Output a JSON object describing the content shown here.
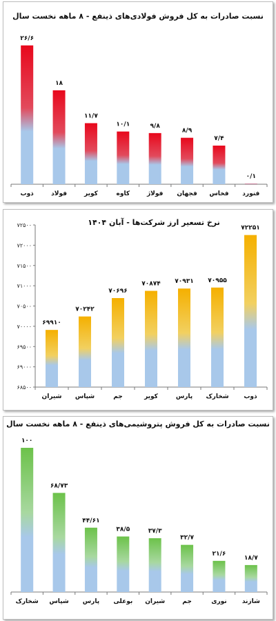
{
  "colors": {
    "red_top": "#e8081c",
    "red_mid": "#e24a5c",
    "yellow_top": "#f5b000",
    "yellow_mid": "#f2d060",
    "green_top": "#6cc24a",
    "green_mid": "#a8d8a0",
    "bar_bottom": "#a8c8ea"
  },
  "chart_data": [
    {
      "type": "bar",
      "title": "نسبت صادرات به کل فروش فولادی‌های ذینفع - ۸ ماهه نخست سال",
      "categories": [
        "ذوب",
        "فولاد",
        "کویر",
        "کاوه",
        "فولاژ",
        "فجهان",
        "فخاس",
        "فنورد"
      ],
      "values": [
        26.6,
        18,
        11.7,
        10.1,
        9.8,
        8.9,
        7.4,
        0.1
      ],
      "value_labels": [
        "۲۶/۶",
        "۱۸",
        "۱۱/۷",
        "۱۰/۱",
        "۹/۸",
        "۸/۹",
        "۷/۴",
        "۰/۱"
      ],
      "ylim": [
        0,
        27.5
      ],
      "grid": false,
      "color_scheme": "red"
    },
    {
      "type": "bar",
      "title": "نرخ تسعیر ارز شرکت‌ها - آبان ۱۴۰۴",
      "categories": [
        "شیران",
        "شپاس",
        "جم",
        "کویر",
        "پارس",
        "شخارک",
        "ذوب"
      ],
      "values": [
        69910,
        70242,
        70696,
        70874,
        70931,
        70955,
        72251
      ],
      "value_labels": [
        "۶۹۹۱۰",
        "۷۰۲۴۲",
        "۷۰۶۹۶",
        "۷۰۸۷۴",
        "۷۰۹۳۱",
        "۷۰۹۵۵",
        "۷۲۲۵۱"
      ],
      "ylim": [
        68500,
        72500
      ],
      "yticks": [
        68500,
        69000,
        69500,
        70000,
        70500,
        71000,
        71500,
        72000,
        72500
      ],
      "ytick_labels": [
        "۶۸۵۰۰",
        "۶۹۰۰۰",
        "۶۹۵۰۰",
        "۷۰۰۰۰",
        "۷۰۵۰۰",
        "۷۱۰۰۰",
        "۷۱۵۰۰",
        "۷۲۰۰۰",
        "۷۲۵۰۰"
      ],
      "grid": false,
      "color_scheme": "yellow"
    },
    {
      "type": "bar",
      "title": "نسبت صادرات به کل فروش پتروشیمی‌های ذینفع - ۸ ماهه نخست سال",
      "categories": [
        "شخارک",
        "شپاس",
        "پارس",
        "بوعلی",
        "شیران",
        "جم",
        "نوری",
        "شازند"
      ],
      "values": [
        100,
        68.73,
        44.61,
        38.5,
        37.3,
        32.7,
        21.6,
        18.7
      ],
      "value_labels": [
        "۱۰۰",
        "۶۸/۷۳",
        "۴۴/۶۱",
        "۳۸/۵",
        "۳۷/۳",
        "۳۲/۷",
        "۲۱/۶",
        "۱۸/۷"
      ],
      "ylim": [
        0,
        100
      ],
      "grid": false,
      "color_scheme": "green"
    }
  ]
}
